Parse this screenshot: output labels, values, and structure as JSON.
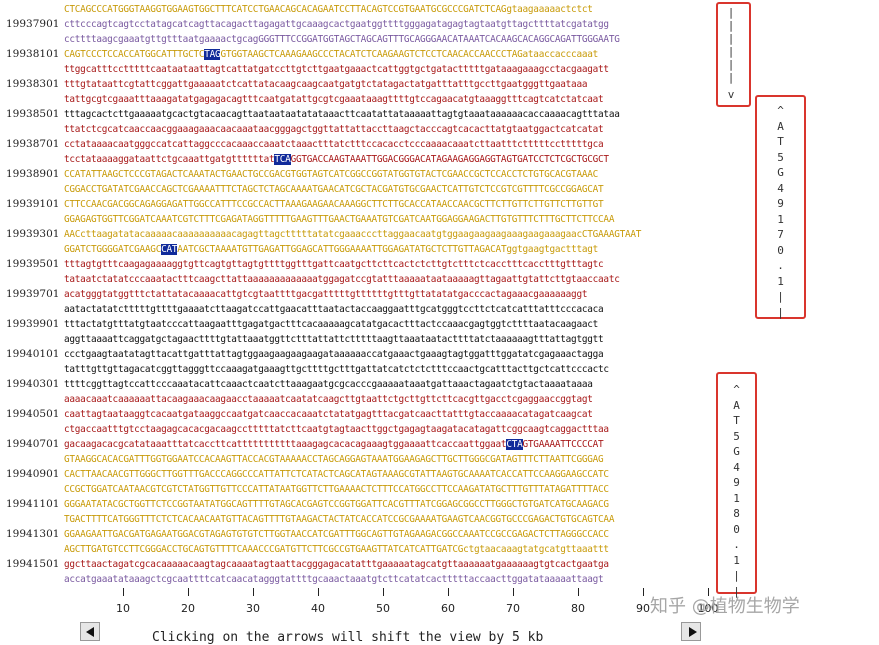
{
  "rows": [
    {
      "coord": "",
      "cls": "c-exon",
      "seq": "CTCAGCCCATGGGTAAGGTGGAAGTGGCTTTCATCCTGAACAGCACAGAATCCTTACAGTCCGTGAATGCGCCCGATCTCAGgtaagaaaaactctct"
    },
    {
      "coord": "19937901",
      "cls": "c-utr",
      "seq": "cttcccagtcagtcctatagcatcagttacagacttagagattgcaaagcactgaatggttttgggagatagagtagtaatgttagcttttatcgatatgg"
    },
    {
      "coord": "",
      "cls": "c-utr",
      "seq": "ccttttaagcgaaatgttgtttaatgaaaactgcagGGGTTTCCGGATGGTAGCTAGCAGTTTGCAGGGAACATAAATCACAAGCACAGGCAGATTGGGAATG"
    },
    {
      "coord": "19938101",
      "cls": "c-exon",
      "seq": "CAGTCCCTCCACCATGGCATTTGCTCTAGGTGGTAAGCTCAAAGAAGCCCTACATCTCAAGAAGTCTCCTCAACACCAACCCTAGataaccacccaaat"
    },
    {
      "coord": "",
      "cls": "c-intron",
      "seq": "ttggcatttcctttttcaataataattagtcattatgatccttgtcttgaatgaaactcattggtgctgatactttttgataaagaaagcctacgaagatt"
    },
    {
      "coord": "19938301",
      "cls": "c-intron",
      "seq": "tttgtataattcgtattcggattgaaaaatctcattatacaagcaagcaatgatgtctatagactatgatttatttgccttgaatgggttgaataaa"
    },
    {
      "coord": "",
      "cls": "c-intron",
      "seq": "tattgcgtcgaaatttaaagatatgagagacagtttcaatgatattgcgtcgaaataaagttttgtccagaacatgtaaaggtttcagtcatctatcaat"
    },
    {
      "coord": "19938501",
      "cls": "c-black",
      "seq": "tttagcactcttgaaaaatgcactgtacaacagttaataataatatataaacttcaatattataaaaattagtgtaaataaaaaacaccaaaacagtttataa"
    },
    {
      "coord": "",
      "cls": "c-intron",
      "seq": "ttatctcgcatcaaccaacggaaagaaacaacaaataacgggagctggttattattaccttaagctacccagtcacacttatgtaatggactcatcatat"
    },
    {
      "coord": "19938701",
      "cls": "c-intron",
      "seq": "cctataaaacaatgggccatcattaggcccacaaaccaaatctaaactttatctttccacacctcccaaaacaaatcttaatttctttttcctttttgca"
    },
    {
      "coord": "",
      "cls": "c-intron",
      "seq": "tcctataaaaggataattctgcaaattgatgttttttatTCAGGTGACCAAGTAAATTGGACGGGACATAGAAGAGGAGGTAGTGATCCTCTCGCTGCGCT"
    },
    {
      "coord": "19938901",
      "cls": "c-exon",
      "seq": "CCATATTAAGCTCCCGTAGACTCAAATACTGAACTGCCGACGTGGTAGTCATCGGCCGGTATGGTGTACTCGAACCGCTCCACCTCTGTGCACGTAAAC"
    },
    {
      "coord": "",
      "cls": "c-exon",
      "seq": "CGGACCTGATATCGAACCAGCTCGAAAATTTCTAGCTCTAGCAAAATGAACATCGCTACGATGTGCGAACTCATTGTCTCCGTCGTTTTCGCCGGAGCAT"
    },
    {
      "coord": "19939101",
      "cls": "c-exon",
      "seq": "CTTCCAACGACGGCAGAGGAGATTGGCCATTTCCGCCACTTAAAGAAGAACAAAGGCTTCTTGCACCATAACCAACGCTTCTTGTTCTTGTTCTTGTTGT"
    },
    {
      "coord": "",
      "cls": "c-exon",
      "seq": "GGAGAGTGGTTCGGATCAAATCGTCTTTCGAGATAGGTTTTTGAAGTTTGAACTGAAATGTCGATCAATGGAGGAAGACTTGTGTTTCTTTGCTTCTTCCAA"
    },
    {
      "coord": "19939301",
      "cls": "c-exon",
      "seq": "AACcttaagatatacaaaaacaaaaaaaaaacagagttagctttttatatcgaaacccttaggaacaatgtggaagaagaagaaagaagaaagaacCTGAAAGTAAT"
    },
    {
      "coord": "",
      "cls": "c-exon",
      "seq": "GGATCTGGGGATCGAAGCCATAATCGCTAAAATGTTGAGATTGGAGCATTGGGAAAATTGGAGATATGCTCTTGTTAGACATggtgaagtgactttagt"
    },
    {
      "coord": "19939501",
      "cls": "c-intron",
      "seq": "tttagtgtttcaagagaaaaggtgttcagtgttagtgttttggtttgattcaatgcttcttcactctcttgtctttctcacctttcacctttgtttagtc"
    },
    {
      "coord": "",
      "cls": "c-intron",
      "seq": "tataatctatatcccaaatactttcaagcttattaaaaaaaaaaaaatggagatccgtatttaaaaataataaaaagttagaattgtattcttgtaaccaatc"
    },
    {
      "coord": "19939701",
      "cls": "c-intron",
      "seq": "acatgggtatggtttctattatacaaaacattgtcgtaattttgacgatttttgttttttgtttgttatatatgacccactagaaacgaaaaaaggt"
    },
    {
      "coord": "",
      "cls": "c-black",
      "seq": "aatactatatctttttgttttgaaaatcttaagatccattgaacatttaatactaccaaggaatttgcatgggtccttctcatcatttatttcccacaca"
    },
    {
      "coord": "19939901",
      "cls": "c-black",
      "seq": "tttactatgtttatgtaatcccattaagaatttgagatgactttcacaaaaagcatatgacactttactccaaacgagtggtcttttaatacaagaact"
    },
    {
      "coord": "",
      "cls": "c-black",
      "seq": "aggttaaaattcaggatgctagaacttttgtattaaatggttctttattattctttttaagttaaataatacttttatctaaaaaagtttattagtggtt"
    },
    {
      "coord": "19940101",
      "cls": "c-black",
      "seq": "ccctgaagtaatatagttacattgatttattagtggaagaagaagaagataaaaaaccatgaaactgaaagtagtggatttggatatcgagaaactagga"
    },
    {
      "coord": "",
      "cls": "c-black",
      "seq": "tatttgttgttagacatcggttagggttccaaagatgaaagttgcttttgctttgattatcatctctctttccaactgcatttacttgctcattcccactc"
    },
    {
      "coord": "19940301",
      "cls": "c-black",
      "seq": "ttttcggttagtccattcccaaatacattcaaactcaatcttaaagaatgcgcacccgaaaaataaatgattaaactagaatctgtactaaaataaaa"
    },
    {
      "coord": "",
      "cls": "c-intron",
      "seq": "aaaacaaatcaaaaaattacaagaaacaagaacctaaaaatcaatatcaagcttgtaattctgcttgttcttcacgttgacctcgaggaaccggtagt"
    },
    {
      "coord": "19940501",
      "cls": "c-intron",
      "seq": "caattagtaataaggtcacaatgataaggccaatgatcaaccacaaatctatatgagtttacgatcaacttatttgtaccaaaacatagatcaagcat"
    },
    {
      "coord": "",
      "cls": "c-intron",
      "seq": "ctgaccaatttgtcctaagagcacacgacaagcctttttatcttcaatgtagtaacttggctgagagtaagatacatagattcggcaagtcaggactttaa"
    },
    {
      "coord": "19940701",
      "cls": "c-intron",
      "seq": "gacaagacacgcatataaatttatcaccttcatttttttttttaaagagcacacagaaagtggaaaattcaccaattggaatCTAGTGAAAATTCCCCAT"
    },
    {
      "coord": "",
      "cls": "c-exon",
      "seq": "GTAAGGCACACGATTTGGTGGAATCCACAAGTTACCACGTAAAAACCTAGCAGGAGTAAATGGAAGAGCTTGCTTGGGCGATAGTTTCTTAATTCGGGAG"
    },
    {
      "coord": "19940901",
      "cls": "c-exon",
      "seq": "CACTTAACAACGTTGGGCTTGGTTTGACCCAGGCCCATTATTCTCATACTCAGCATAGTAAAGCGTATTAAGTGCAAAATCACCATTCCAAGGAAGCCATC"
    },
    {
      "coord": "",
      "cls": "c-exon",
      "seq": "CCGCTGGATCAATAACGTCGTCTATGGTTGTTCCCATTATAATGGTTCTTGAAAACTCTTTCCATGGCCTTCCAAGATATGCTTTGTTTATAGATTTTACC"
    },
    {
      "coord": "19941101",
      "cls": "c-exon",
      "seq": "GGGAATATACGCTGGTTCTCCGGTAATATGGCAGTTTTGTAGCACGAGTCCGGTGGATTCACGTTTATCGGAGCGGCCTTGGGCTGTGATCATGCAAGACG"
    },
    {
      "coord": "",
      "cls": "c-exon",
      "seq": "TGACTTTTCATGGGTTTCTCTCACAACAATGTTACAGTTTTGTAAGACTACTATCACCATCCGCGAAAATGAAGTCAACGGTGCCCGAGACTGTGCAGTCAA"
    },
    {
      "coord": "19941301",
      "cls": "c-exon",
      "seq": "GGAAGAATTGACGATGAGAATGGACGTAGAGTGTGTCTTGGTAACCATCGATTTGGCAGTTGTAGAAGACGGCCAAATCCGCCGAGACTCTTAGGGCCACC"
    },
    {
      "coord": "",
      "cls": "c-exon",
      "seq": "AGCTTGATGTCCTTCGGGACCTGCAGTGTTTTCAAACCCGATGTTCTTCGCCGTGAAGTTATCATCATTGATCGctgtaacaaagtatgcatgttaaattt"
    },
    {
      "coord": "19941501",
      "cls": "c-intron",
      "seq": "ggcttaactagatcgcacaaaaacaagtagcaaaatagtaattacgggagacatatttgaaaaatagcatgttaaaaaatgaaaaaagtgtcactgaatga"
    },
    {
      "coord": "",
      "cls": "c-utr",
      "seq": "accatgaaatataaagctcgcaattttcatcaacatagggtattttgcaaactaaatgtcttcatatcactttttaccaacttggatataaaaattaagt"
    }
  ],
  "highlights": [
    {
      "row": 3,
      "text": "TAG"
    },
    {
      "row": 10,
      "text": "TCA"
    },
    {
      "row": 16,
      "text": "CAT"
    },
    {
      "row": 29,
      "text": "CTA"
    }
  ],
  "gene_labels": {
    "top_arrow_glyph": "v",
    "at5g49170": {
      "caret": "^",
      "chars": [
        "A",
        "T",
        "5",
        "G",
        "4",
        "9",
        "1",
        "7",
        "0",
        ".",
        "1"
      ]
    },
    "at5g49180": {
      "caret": "^",
      "chars": [
        "A",
        "T",
        "5",
        "G",
        "4",
        "9",
        "1",
        "8",
        "0",
        ".",
        "1"
      ]
    },
    "bar_glyph": "|"
  },
  "ruler": {
    "ticks": [
      "10",
      "20",
      "30",
      "40",
      "50",
      "60",
      "70",
      "80",
      "90",
      "100"
    ]
  },
  "nav": {
    "message": "Clicking on the arrows will shift the view by 5 kb",
    "left_arrow": "left-arrow-icon",
    "right_arrow": "right-arrow-icon"
  },
  "watermark": "知乎 @植物生物学",
  "colors": {
    "exon": "#c89b0a",
    "intron": "#a81a1a",
    "utr": "#7a5aa0",
    "highlight": "#102a9a",
    "box": "#d9352d"
  }
}
